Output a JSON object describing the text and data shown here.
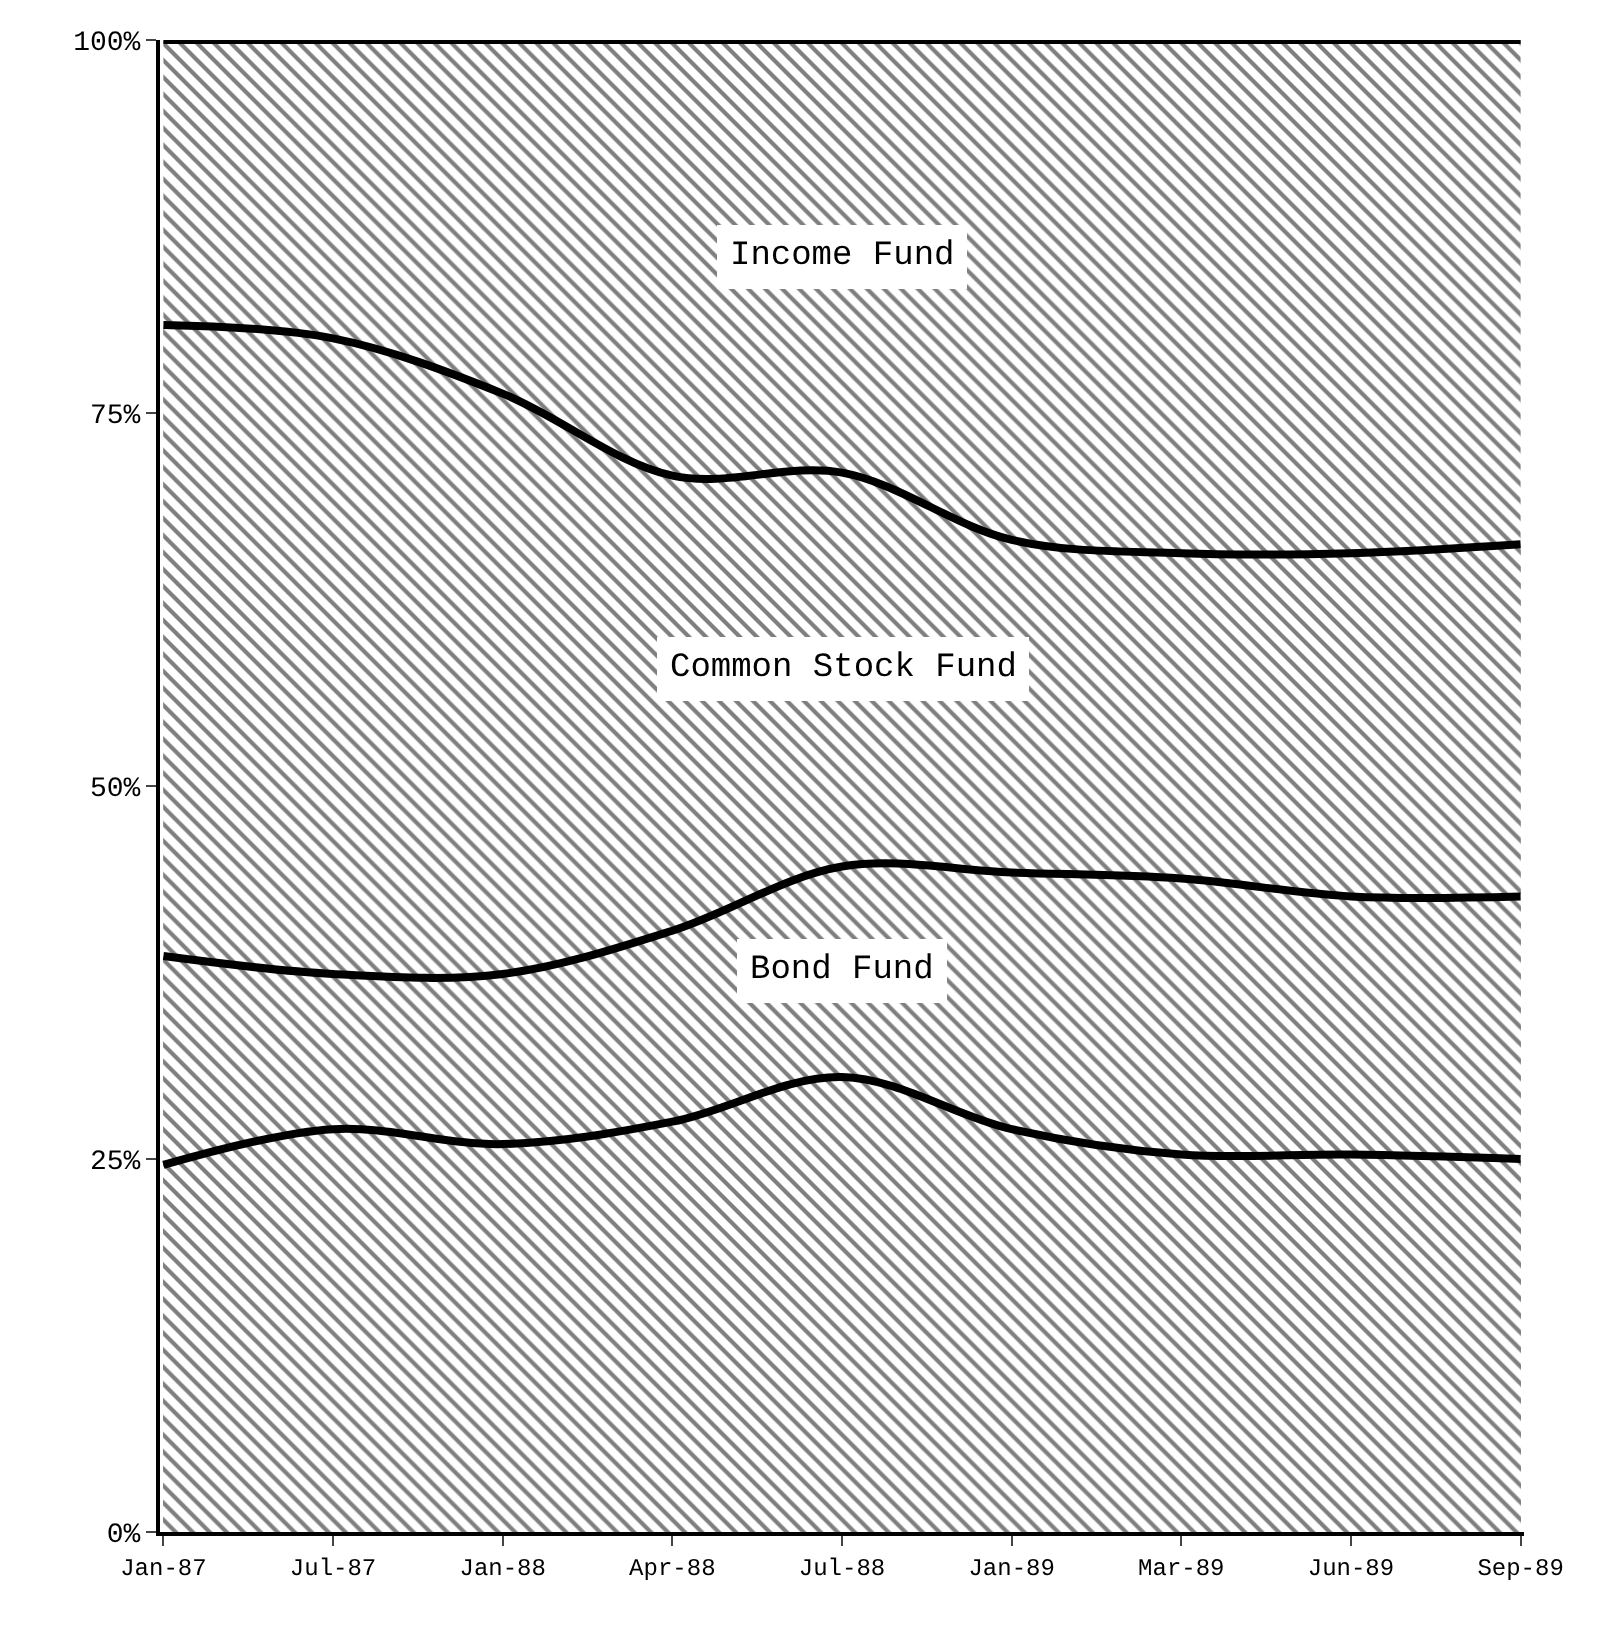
{
  "chart_data": {
    "type": "area",
    "stacked": true,
    "categories": [
      "Jan-87",
      "Jul-87",
      "Jan-88",
      "Apr-88",
      "Jul-88",
      "Jan-89",
      "Mar-89",
      "Jun-89",
      "Sep-89"
    ],
    "series": [
      {
        "color": "#000000",
        "values": [
          24.6,
          27,
          26,
          27.5,
          30.5,
          27,
          25.3,
          25.3,
          25
        ]
      },
      {
        "name": "Bond Fund",
        "color": "#000000",
        "values": [
          14,
          10.4,
          11.4,
          12.8,
          14.1,
          17.2,
          18.5,
          17.3,
          17.6
        ]
      },
      {
        "name": "Common Stock Fund",
        "color": "#000000",
        "values": [
          42.3,
          42.6,
          38.9,
          30.5,
          26.4,
          22.3,
          21.8,
          23,
          23.6
        ]
      },
      {
        "name": "Income Fund",
        "color": "#000000",
        "values": [
          19.1,
          20,
          23.7,
          29.2,
          29,
          33.5,
          34.4,
          34.4,
          33.8
        ]
      }
    ],
    "ylim": [
      0,
      100
    ],
    "yticks": [
      {
        "value": 0,
        "label": "0%"
      },
      {
        "value": 25,
        "label": "25%"
      },
      {
        "value": 50,
        "label": "50%"
      },
      {
        "value": 75,
        "label": "75%"
      },
      {
        "value": 100,
        "label": "100%"
      }
    ],
    "tick_labels": [
      "x",
      "y"
    ]
  }
}
